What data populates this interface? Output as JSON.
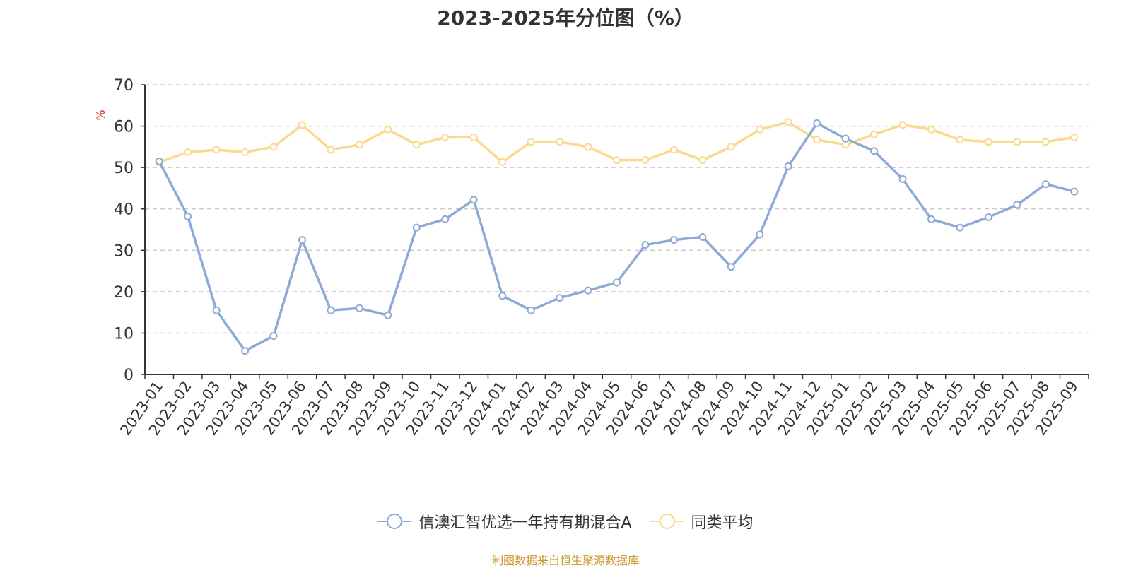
{
  "chart_data": {
    "type": "line",
    "title": "2023-2025年分位图（%）",
    "xlabel": "",
    "ylabel": "%",
    "ylim": [
      0,
      70
    ],
    "yticks": [
      0,
      10,
      20,
      30,
      40,
      50,
      60,
      70
    ],
    "grid": true,
    "legend_position": "bottom",
    "categories": [
      "2023-01",
      "2023-02",
      "2023-03",
      "2023-04",
      "2023-05",
      "2023-06",
      "2023-07",
      "2023-08",
      "2023-09",
      "2023-10",
      "2023-11",
      "2023-12",
      "2024-01",
      "2024-02",
      "2024-03",
      "2024-04",
      "2024-05",
      "2024-06",
      "2024-07",
      "2024-08",
      "2024-09",
      "2024-10",
      "2024-11",
      "2024-12",
      "2025-01",
      "2025-02",
      "2025-03",
      "2025-04",
      "2025-05",
      "2025-06",
      "2025-07",
      "2025-08",
      "2025-09"
    ],
    "series": [
      {
        "name": "信澳汇智优选一年持有期混合A",
        "color": "#8eabd6",
        "values": [
          51.5,
          38.2,
          15.5,
          5.7,
          9.3,
          32.5,
          15.5,
          16.0,
          14.3,
          35.5,
          37.5,
          42.2,
          19.0,
          15.5,
          18.5,
          20.3,
          22.2,
          31.3,
          32.5,
          33.2,
          26.0,
          33.8,
          50.3,
          60.7,
          57.0,
          54.0,
          47.2,
          37.5,
          35.5,
          38.0,
          41.0,
          46.0,
          44.2
        ]
      },
      {
        "name": "同类平均",
        "color": "#fbd98f",
        "values": [
          51.3,
          53.7,
          54.3,
          53.7,
          55.0,
          60.3,
          54.3,
          55.5,
          59.2,
          55.5,
          57.3,
          57.3,
          51.3,
          56.2,
          56.2,
          55.0,
          51.8,
          51.8,
          54.3,
          51.8,
          55.0,
          59.2,
          61.0,
          56.7,
          55.5,
          58.0,
          60.3,
          59.2,
          56.7,
          56.2,
          56.2,
          56.2,
          57.3
        ]
      }
    ]
  },
  "footer": {
    "source_note": "制图数据来自恒生聚源数据库"
  }
}
